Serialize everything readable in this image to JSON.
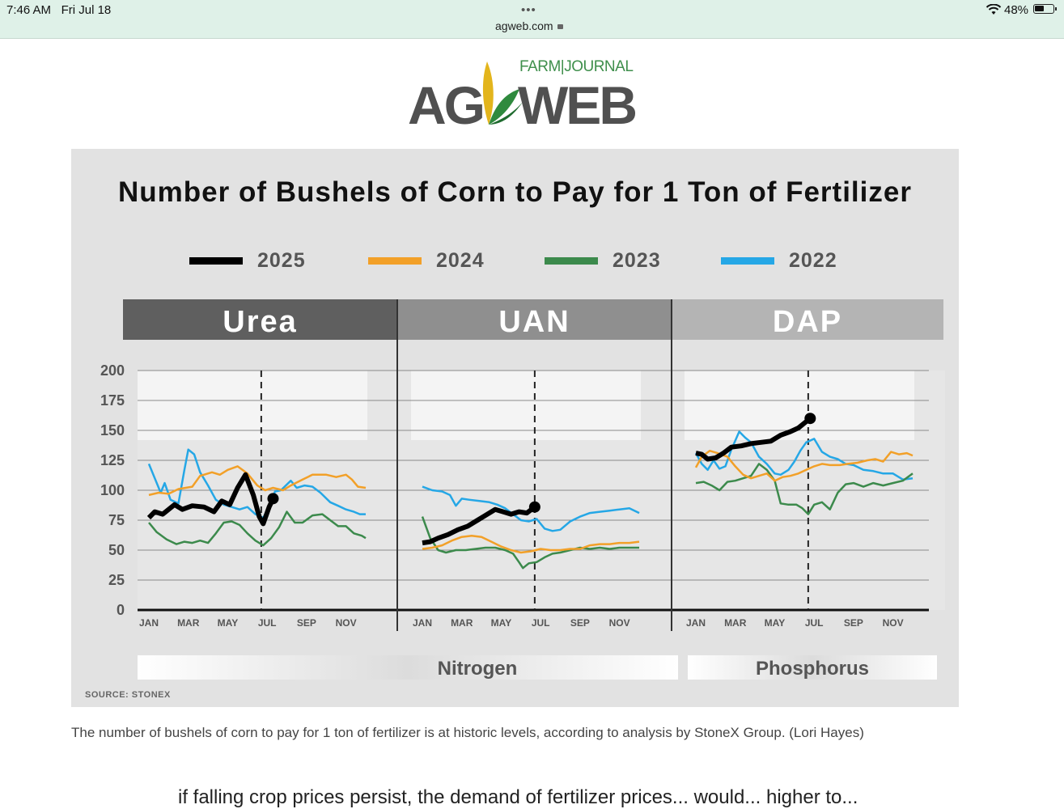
{
  "status_bar": {
    "time": "7:46 AM",
    "date": "Fri Jul 18",
    "url": "agweb.com",
    "battery": "48%",
    "menu_dots": "•••",
    "battery_level": 0.48
  },
  "site": {
    "logo_left": "AG",
    "logo_right": "WEB",
    "logo_tagline": "FARM|JOURNAL"
  },
  "chart_data": {
    "type": "line",
    "title": "Number of Bushels of Corn to Pay for 1 Ton of Fertilizer",
    "legend": [
      "2025",
      "2024",
      "2023",
      "2022"
    ],
    "colors": {
      "2025": "#000000",
      "2024": "#f2a028",
      "2023": "#3c8a4c",
      "2022": "#25a7e6"
    },
    "panels": [
      "Urea",
      "UAN",
      "DAP"
    ],
    "groups": [
      "Nitrogen",
      "Phosphorus"
    ],
    "yticks": [
      0,
      25,
      50,
      75,
      100,
      125,
      150,
      175,
      200
    ],
    "ylim": [
      0,
      200
    ],
    "xtick_labels": [
      "JAN",
      "MAR",
      "MAY",
      "JUL",
      "SEP",
      "NOV"
    ],
    "x_unit": "month (1 = Jan)",
    "marker_month": 6.7,
    "grid": true,
    "legend_position": "top",
    "source": "SOURCE: STONEX",
    "series": {
      "Urea": {
        "2025": [
          [
            1,
            77
          ],
          [
            1.3,
            82
          ],
          [
            1.7,
            80
          ],
          [
            2.3,
            88
          ],
          [
            2.7,
            84
          ],
          [
            3.2,
            87
          ],
          [
            3.8,
            86
          ],
          [
            4.3,
            82
          ],
          [
            4.7,
            91
          ],
          [
            5.1,
            88
          ],
          [
            5.5,
            102
          ],
          [
            5.9,
            113
          ],
          [
            6.3,
            96
          ],
          [
            6.6,
            78
          ],
          [
            6.8,
            72
          ],
          [
            7.1,
            86
          ],
          [
            7.3,
            93
          ]
        ],
        "2024": [
          [
            1,
            96
          ],
          [
            1.5,
            98
          ],
          [
            2,
            97
          ],
          [
            2.5,
            101
          ],
          [
            3.2,
            103
          ],
          [
            3.6,
            112
          ],
          [
            4.2,
            115
          ],
          [
            4.6,
            113
          ],
          [
            5,
            117
          ],
          [
            5.5,
            120
          ],
          [
            6,
            114
          ],
          [
            6.5,
            104
          ],
          [
            6.9,
            100
          ],
          [
            7.3,
            102
          ],
          [
            7.8,
            100
          ],
          [
            8.2,
            104
          ],
          [
            8.8,
            109
          ],
          [
            9.3,
            113
          ],
          [
            10,
            113
          ],
          [
            10.5,
            111
          ],
          [
            11,
            113
          ],
          [
            11.3,
            109
          ],
          [
            11.6,
            103
          ],
          [
            12,
            102
          ]
        ],
        "2023": [
          [
            1,
            73
          ],
          [
            1.4,
            65
          ],
          [
            1.9,
            59
          ],
          [
            2.4,
            55
          ],
          [
            2.8,
            57
          ],
          [
            3.2,
            56
          ],
          [
            3.6,
            58
          ],
          [
            4,
            56
          ],
          [
            4.4,
            64
          ],
          [
            4.8,
            73
          ],
          [
            5.2,
            74
          ],
          [
            5.6,
            71
          ],
          [
            6,
            64
          ],
          [
            6.4,
            58
          ],
          [
            6.8,
            54
          ],
          [
            7.2,
            60
          ],
          [
            7.6,
            69
          ],
          [
            8,
            82
          ],
          [
            8.4,
            73
          ],
          [
            8.8,
            73
          ],
          [
            9.3,
            79
          ],
          [
            9.8,
            80
          ],
          [
            10.2,
            75
          ],
          [
            10.6,
            70
          ],
          [
            11,
            70
          ],
          [
            11.4,
            64
          ],
          [
            11.8,
            62
          ],
          [
            12,
            60
          ]
        ],
        "2022": [
          [
            1,
            122
          ],
          [
            1.3,
            110
          ],
          [
            1.6,
            98
          ],
          [
            1.8,
            106
          ],
          [
            2.1,
            92
          ],
          [
            2.5,
            89
          ],
          [
            2.8,
            117
          ],
          [
            3,
            134
          ],
          [
            3.3,
            130
          ],
          [
            3.6,
            115
          ],
          [
            4,
            104
          ],
          [
            4.4,
            92
          ],
          [
            4.8,
            88
          ],
          [
            5.2,
            86
          ],
          [
            5.6,
            84
          ],
          [
            6,
            86
          ],
          [
            6.4,
            80
          ],
          [
            6.8,
            77
          ],
          [
            7.1,
            86
          ],
          [
            7.4,
            99
          ],
          [
            7.7,
            100
          ],
          [
            8.2,
            108
          ],
          [
            8.5,
            102
          ],
          [
            8.9,
            104
          ],
          [
            9.3,
            103
          ],
          [
            9.7,
            98
          ],
          [
            10.2,
            90
          ],
          [
            10.6,
            87
          ],
          [
            11,
            84
          ],
          [
            11.4,
            82
          ],
          [
            11.7,
            80
          ],
          [
            12,
            80
          ]
        ]
      },
      "UAN": {
        "2025": [
          [
            1,
            56
          ],
          [
            1.4,
            57
          ],
          [
            1.8,
            60
          ],
          [
            2.3,
            63
          ],
          [
            2.8,
            67
          ],
          [
            3.3,
            70
          ],
          [
            3.8,
            75
          ],
          [
            4.3,
            80
          ],
          [
            4.7,
            84
          ],
          [
            5.1,
            82
          ],
          [
            5.5,
            80
          ],
          [
            5.9,
            82
          ],
          [
            6.3,
            81
          ],
          [
            6.7,
            86
          ]
        ],
        "2024": [
          [
            1,
            51
          ],
          [
            1.5,
            52
          ],
          [
            2,
            54
          ],
          [
            2.5,
            58
          ],
          [
            3,
            61
          ],
          [
            3.5,
            62
          ],
          [
            4,
            61
          ],
          [
            4.5,
            57
          ],
          [
            5,
            53
          ],
          [
            5.5,
            50
          ],
          [
            6,
            48
          ],
          [
            6.5,
            49
          ],
          [
            7,
            51
          ],
          [
            7.5,
            50
          ],
          [
            8,
            50
          ],
          [
            8.5,
            51
          ],
          [
            9,
            51
          ],
          [
            9.5,
            54
          ],
          [
            10,
            55
          ],
          [
            10.5,
            55
          ],
          [
            11,
            56
          ],
          [
            11.5,
            56
          ],
          [
            12,
            57
          ]
        ],
        "2023": [
          [
            1,
            78
          ],
          [
            1.4,
            60
          ],
          [
            1.8,
            50
          ],
          [
            2.2,
            48
          ],
          [
            2.7,
            50
          ],
          [
            3.2,
            50
          ],
          [
            3.7,
            51
          ],
          [
            4.2,
            52
          ],
          [
            4.7,
            52
          ],
          [
            5.2,
            50
          ],
          [
            5.6,
            47
          ],
          [
            5.9,
            40
          ],
          [
            6.1,
            35
          ],
          [
            6.4,
            39
          ],
          [
            6.8,
            40
          ],
          [
            7.2,
            44
          ],
          [
            7.6,
            47
          ],
          [
            8,
            48
          ],
          [
            8.5,
            50
          ],
          [
            9,
            52
          ],
          [
            9.5,
            51
          ],
          [
            10,
            52
          ],
          [
            10.5,
            51
          ],
          [
            11,
            52
          ],
          [
            11.5,
            52
          ],
          [
            12,
            52
          ]
        ],
        "2022": [
          [
            1,
            103
          ],
          [
            1.5,
            100
          ],
          [
            2,
            99
          ],
          [
            2.4,
            96
          ],
          [
            2.7,
            87
          ],
          [
            3,
            93
          ],
          [
            3.4,
            92
          ],
          [
            3.9,
            91
          ],
          [
            4.4,
            90
          ],
          [
            4.8,
            88
          ],
          [
            5.2,
            85
          ],
          [
            5.6,
            80
          ],
          [
            6,
            75
          ],
          [
            6.4,
            74
          ],
          [
            6.8,
            76
          ],
          [
            7.2,
            68
          ],
          [
            7.6,
            66
          ],
          [
            8,
            67
          ],
          [
            8.5,
            74
          ],
          [
            9,
            78
          ],
          [
            9.5,
            81
          ],
          [
            10,
            82
          ],
          [
            10.5,
            83
          ],
          [
            11,
            84
          ],
          [
            11.5,
            85
          ],
          [
            12,
            81
          ]
        ]
      },
      "DAP": {
        "2025": [
          [
            1,
            131
          ],
          [
            1.3,
            130
          ],
          [
            1.6,
            126
          ],
          [
            2,
            127
          ],
          [
            2.4,
            131
          ],
          [
            2.8,
            136
          ],
          [
            3.3,
            137
          ],
          [
            3.8,
            139
          ],
          [
            4.3,
            140
          ],
          [
            4.8,
            141
          ],
          [
            5.3,
            146
          ],
          [
            5.8,
            149
          ],
          [
            6.2,
            152
          ],
          [
            6.5,
            156
          ],
          [
            6.8,
            160
          ]
        ],
        "2024": [
          [
            1,
            119
          ],
          [
            1.3,
            128
          ],
          [
            1.7,
            133
          ],
          [
            2.1,
            131
          ],
          [
            2.6,
            128
          ],
          [
            3,
            120
          ],
          [
            3.4,
            113
          ],
          [
            3.8,
            110
          ],
          [
            4.2,
            112
          ],
          [
            4.6,
            114
          ],
          [
            5,
            108
          ],
          [
            5.4,
            111
          ],
          [
            5.8,
            112
          ],
          [
            6.2,
            114
          ],
          [
            6.6,
            117
          ],
          [
            7,
            120
          ],
          [
            7.4,
            122
          ],
          [
            7.8,
            121
          ],
          [
            8.3,
            121
          ],
          [
            8.7,
            122
          ],
          [
            9.2,
            123
          ],
          [
            9.7,
            125
          ],
          [
            10.1,
            126
          ],
          [
            10.5,
            124
          ],
          [
            10.9,
            132
          ],
          [
            11.3,
            130
          ],
          [
            11.7,
            131
          ],
          [
            12,
            129
          ]
        ],
        "2023": [
          [
            1,
            106
          ],
          [
            1.4,
            107
          ],
          [
            1.8,
            104
          ],
          [
            2.2,
            100
          ],
          [
            2.6,
            107
          ],
          [
            3,
            108
          ],
          [
            3.4,
            110
          ],
          [
            3.8,
            112
          ],
          [
            4.2,
            122
          ],
          [
            4.6,
            117
          ],
          [
            5,
            108
          ],
          [
            5.3,
            89
          ],
          [
            5.7,
            88
          ],
          [
            6.1,
            88
          ],
          [
            6.4,
            85
          ],
          [
            6.7,
            80
          ],
          [
            7,
            88
          ],
          [
            7.4,
            90
          ],
          [
            7.8,
            84
          ],
          [
            8.2,
            98
          ],
          [
            8.6,
            105
          ],
          [
            9,
            106
          ],
          [
            9.5,
            103
          ],
          [
            10,
            106
          ],
          [
            10.5,
            104
          ],
          [
            11,
            106
          ],
          [
            11.5,
            108
          ],
          [
            12,
            114
          ]
        ],
        "2022": [
          [
            1,
            131
          ],
          [
            1.3,
            122
          ],
          [
            1.6,
            117
          ],
          [
            1.9,
            125
          ],
          [
            2.2,
            118
          ],
          [
            2.5,
            120
          ],
          [
            2.8,
            134
          ],
          [
            3.2,
            149
          ],
          [
            3.5,
            144
          ],
          [
            3.8,
            140
          ],
          [
            4.2,
            128
          ],
          [
            4.6,
            122
          ],
          [
            5,
            114
          ],
          [
            5.3,
            113
          ],
          [
            5.7,
            117
          ],
          [
            6,
            124
          ],
          [
            6.3,
            133
          ],
          [
            6.6,
            140
          ],
          [
            7,
            143
          ],
          [
            7.4,
            132
          ],
          [
            7.8,
            128
          ],
          [
            8.2,
            126
          ],
          [
            8.6,
            122
          ],
          [
            9,
            121
          ],
          [
            9.5,
            117
          ],
          [
            10,
            116
          ],
          [
            10.5,
            114
          ],
          [
            11,
            114
          ],
          [
            11.5,
            109
          ],
          [
            12,
            110
          ]
        ]
      }
    }
  },
  "caption": "The number of bushels of corn to pay for 1 ton of fertilizer is at historic levels, according to analysis by StoneX Group.  (Lori Hayes)",
  "body_text_partial": "if falling crop prices persist, the demand of fertilizer prices... would... higher to..."
}
